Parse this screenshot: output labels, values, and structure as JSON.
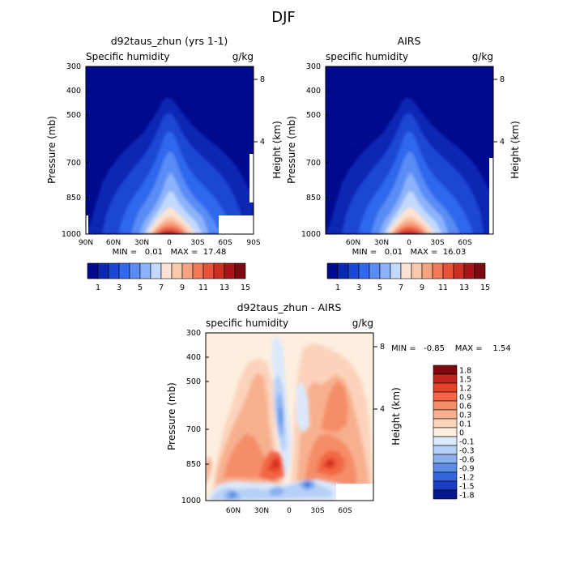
{
  "page_title": "DJF",
  "chart_data": [
    {
      "type": "heatmap",
      "title": "d92taus_zhun (yrs 1-1)",
      "subtitle_left": "Specific humidity",
      "subtitle_right": "g/kg",
      "ylabel": "Pressure (mb)",
      "ylabel_right": "Height (km)",
      "x_ticks": [
        "90N",
        "60N",
        "30N",
        "0",
        "30S",
        "60S",
        "90S"
      ],
      "y_ticks": [
        "300",
        "400",
        "500",
        "700",
        "850",
        "1000"
      ],
      "y_right_ticks": [
        "8",
        "4"
      ],
      "stats": "MIN =   0.01   MAX =  17.48",
      "colorbar_labels": [
        "1",
        "3",
        "5",
        "7",
        "9",
        "11",
        "13",
        "15"
      ],
      "peak_value": 17.48,
      "min_value": 0.01
    },
    {
      "type": "heatmap",
      "title": "AIRS",
      "subtitle_left": "specific humidity",
      "subtitle_right": "g/kg",
      "ylabel": "Pressure (mb)",
      "ylabel_right": "Height (km)",
      "x_ticks": [
        "60N",
        "30N",
        "0",
        "30S",
        "60S"
      ],
      "y_ticks": [
        "300",
        "400",
        "500",
        "700",
        "850",
        "1000"
      ],
      "y_right_ticks": [
        "8",
        "4"
      ],
      "stats": "MIN =   0.01   MAX =  16.03",
      "colorbar_labels": [
        "1",
        "3",
        "5",
        "7",
        "9",
        "11",
        "13",
        "15"
      ],
      "peak_value": 16.03,
      "min_value": 0.01
    },
    {
      "type": "heatmap",
      "title": "d92taus_zhun - AIRS",
      "subtitle_left": "specific humidity",
      "subtitle_right": "g/kg",
      "ylabel": "Pressure (mb)",
      "ylabel_right": "Height (km)",
      "x_ticks": [
        "60N",
        "30N",
        "0",
        "30S",
        "60S"
      ],
      "y_ticks": [
        "300",
        "400",
        "500",
        "700",
        "850",
        "1000"
      ],
      "y_right_ticks": [
        "8",
        "4"
      ],
      "stats": "MIN =   -0.85    MAX =    1.54",
      "colorbar_labels": [
        "1.8",
        "1.5",
        "1.2",
        "0.9",
        "0.6",
        "0.3",
        "0.1",
        "0",
        "-0.1",
        "-0.3",
        "-0.6",
        "-0.9",
        "-1.2",
        "-1.5",
        "-1.8"
      ],
      "min_value": -0.85,
      "max_value": 1.54
    }
  ],
  "palettes": {
    "sequential": [
      "#000a8c",
      "#0a28b4",
      "#1a46d2",
      "#2f68ec",
      "#5a8cf5",
      "#8cb2fa",
      "#c3d9fd",
      "#fbe4d3",
      "#fbc8ac",
      "#f8a27f",
      "#f27957",
      "#e6523a",
      "#cc3024",
      "#a61618",
      "#7a0a10"
    ],
    "diverging": [
      "#7d0a0e",
      "#c2261c",
      "#e6422a",
      "#f26745",
      "#f58d68",
      "#f7b08e",
      "#fbd3bc",
      "#fdeedf",
      "#dce9fb",
      "#b7d0f7",
      "#8ab0f0",
      "#5c8ce6",
      "#3666dc",
      "#1a3ec2",
      "#07178f"
    ]
  }
}
